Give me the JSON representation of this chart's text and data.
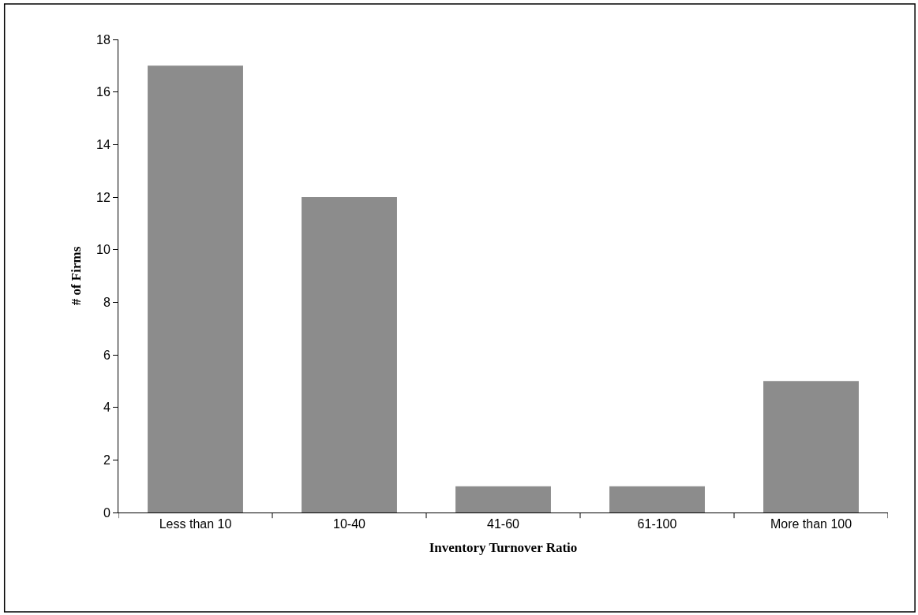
{
  "chart_data": {
    "type": "bar",
    "xlabel": "Inventory Turnover Ratio",
    "ylabel": "# of Firms",
    "categories": [
      "Less than 10",
      "10-40",
      "41-60",
      "61-100",
      "More than 100"
    ],
    "values": [
      17,
      12,
      1,
      1,
      5
    ],
    "color": "#8c8c8c",
    "ylim": [
      0,
      18
    ],
    "yticks": [
      0,
      2,
      4,
      6,
      8,
      10,
      12,
      14,
      16,
      18
    ]
  }
}
